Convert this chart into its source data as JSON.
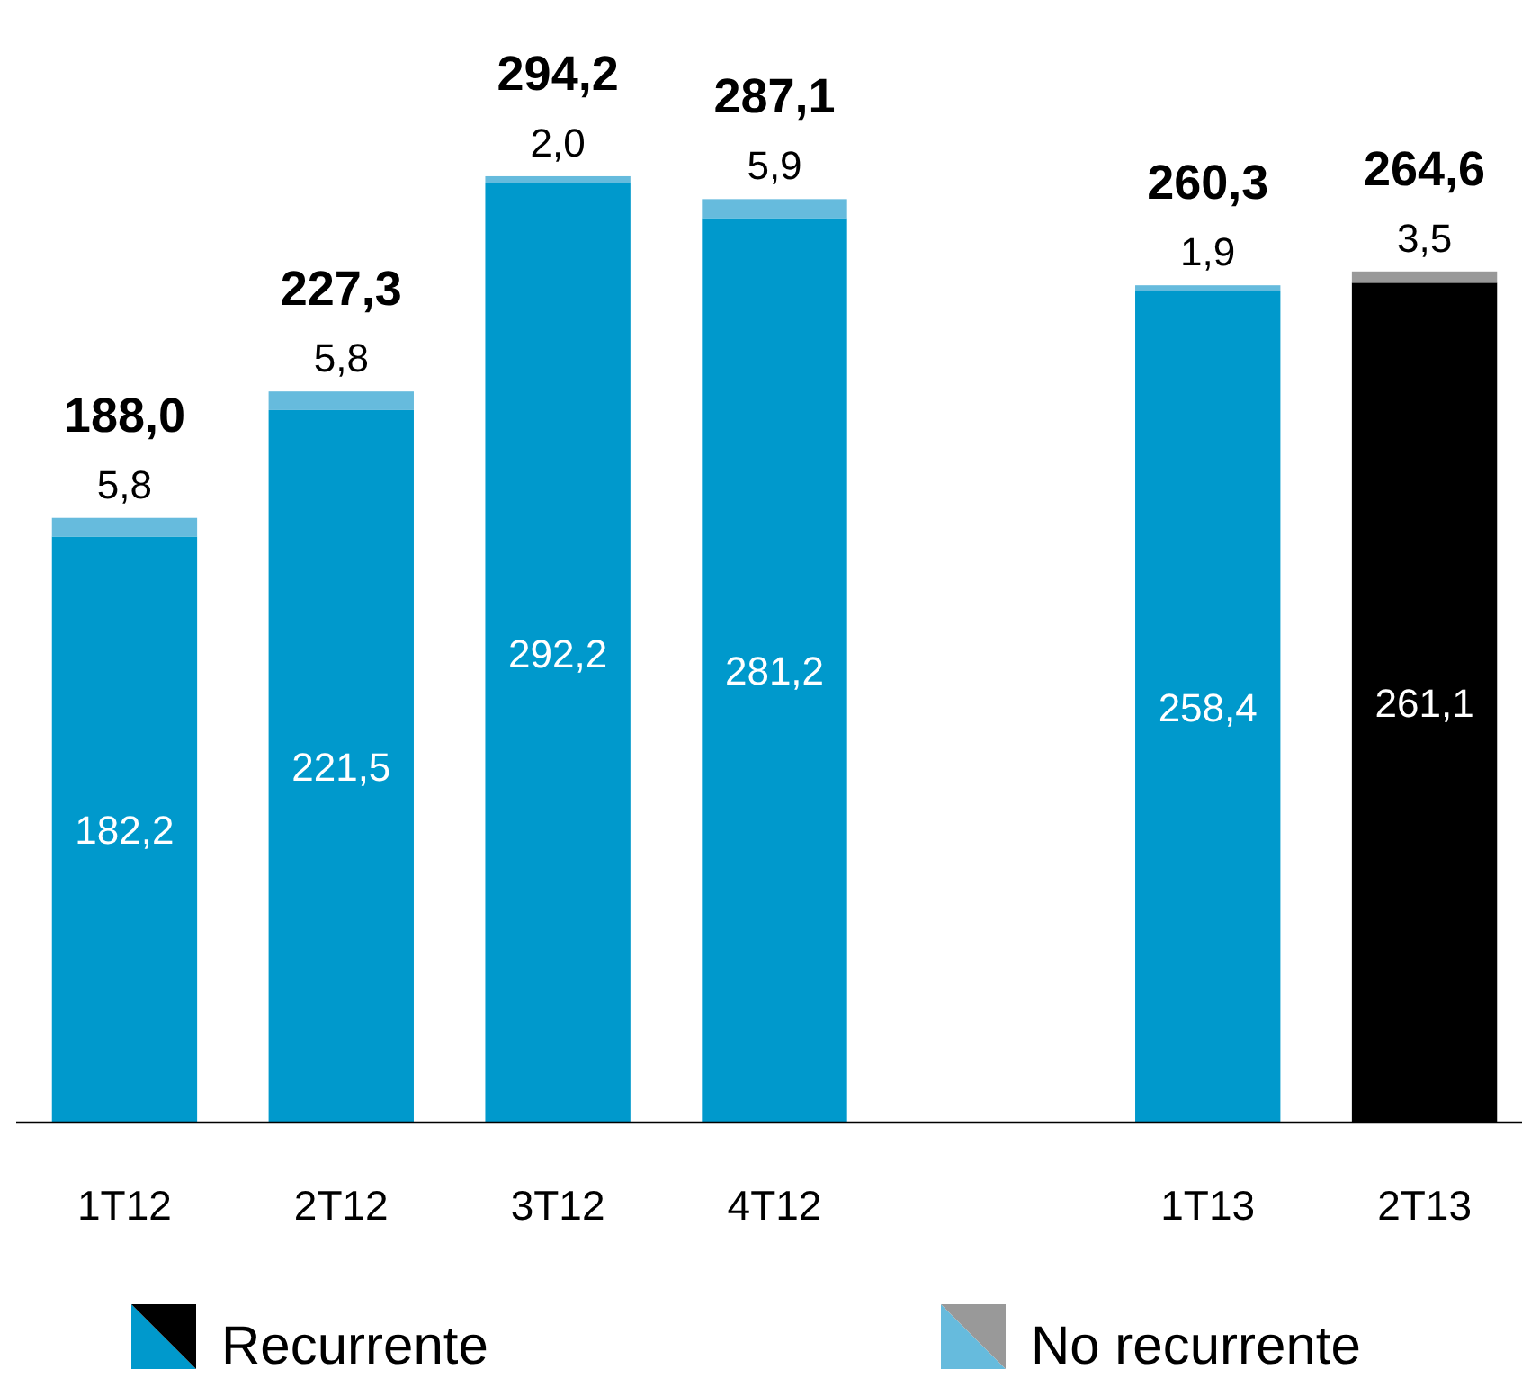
{
  "chart_data": {
    "type": "bar",
    "stacked": true,
    "categories": [
      "1T12",
      "2T12",
      "3T12",
      "4T12",
      null,
      "1T13",
      "2T13"
    ],
    "series": [
      {
        "name": "Recurrente",
        "color": "#0099cc",
        "colors": [
          "#0099cc",
          "#0099cc",
          "#0099cc",
          "#0099cc",
          null,
          "#0099cc",
          "#000000"
        ],
        "values": [
          182.2,
          221.5,
          292.2,
          281.2,
          null,
          258.4,
          261.1
        ],
        "value_labels": [
          "182,2",
          "221,5",
          "292,2",
          "281,2",
          null,
          "258,4",
          "261,1"
        ]
      },
      {
        "name": "No recurrente",
        "color": "#66bbdd",
        "colors": [
          "#66bbdd",
          "#66bbdd",
          "#66bbdd",
          "#66bbdd",
          null,
          "#66bbdd",
          "#999999"
        ],
        "values": [
          5.8,
          5.8,
          2.0,
          5.9,
          null,
          1.9,
          3.5
        ],
        "value_labels": [
          "5,8",
          "5,8",
          "2,0",
          "5,9",
          null,
          "1,9",
          "3,5"
        ]
      }
    ],
    "totals": [
      "188,0",
      "227,3",
      "294,2",
      "287,1",
      null,
      "260,3",
      "264,6"
    ],
    "ylim": [
      0,
      349
    ],
    "tick_labels": "x",
    "legend": "bottom"
  }
}
